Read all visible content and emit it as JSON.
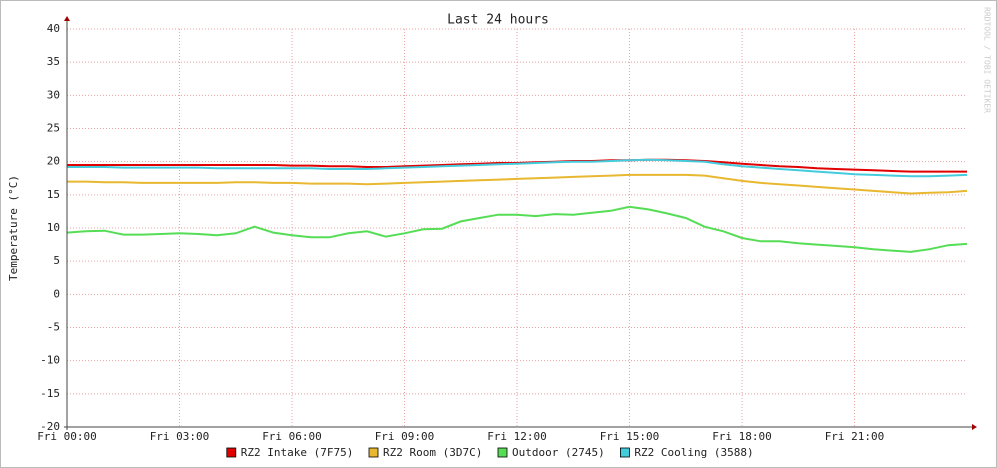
{
  "chart_data": {
    "type": "line",
    "title": "Last 24 hours",
    "y_label": "Temperature (°C)",
    "watermark": "RRDTOOL / TOBI OETIKER",
    "x": [
      0,
      0.5,
      1,
      1.5,
      2,
      2.5,
      3,
      3.5,
      4,
      4.5,
      5,
      5.5,
      6,
      6.5,
      7,
      7.5,
      8,
      8.5,
      9,
      9.5,
      10,
      10.5,
      11,
      11.5,
      12,
      12.5,
      13,
      13.5,
      14,
      14.5,
      15,
      15.5,
      16,
      16.5,
      17,
      17.5,
      18,
      18.5,
      19,
      19.5,
      20,
      20.5,
      21,
      21.5,
      22,
      22.5,
      23,
      23.5,
      24
    ],
    "xlim": [
      0,
      24
    ],
    "xticks": [
      {
        "value": 0,
        "label": "Fri 00:00"
      },
      {
        "value": 3,
        "label": "Fri 03:00"
      },
      {
        "value": 6,
        "label": "Fri 06:00"
      },
      {
        "value": 9,
        "label": "Fri 09:00"
      },
      {
        "value": 12,
        "label": "Fri 12:00"
      },
      {
        "value": 15,
        "label": "Fri 15:00"
      },
      {
        "value": 18,
        "label": "Fri 18:00"
      },
      {
        "value": 21,
        "label": "Fri 21:00"
      }
    ],
    "ylim": [
      -20,
      40
    ],
    "yticks": [
      -20,
      -15,
      -10,
      -5,
      0,
      5,
      10,
      15,
      20,
      25,
      30,
      35,
      40
    ],
    "grid": true,
    "series": [
      {
        "name": "RZ2 Intake (7F75)",
        "color": "#e00000",
        "values": [
          19.5,
          19.5,
          19.5,
          19.5,
          19.5,
          19.5,
          19.5,
          19.5,
          19.5,
          19.5,
          19.5,
          19.5,
          19.4,
          19.4,
          19.3,
          19.3,
          19.2,
          19.2,
          19.3,
          19.4,
          19.5,
          19.6,
          19.7,
          19.8,
          19.8,
          19.9,
          20.0,
          20.1,
          20.1,
          20.2,
          20.2,
          20.3,
          20.3,
          20.2,
          20.1,
          19.9,
          19.7,
          19.5,
          19.3,
          19.2,
          19.0,
          18.9,
          18.8,
          18.7,
          18.6,
          18.5,
          18.5,
          18.5,
          18.5
        ]
      },
      {
        "name": "RZ2 Room (3D7C)",
        "color": "#e8b830",
        "values": [
          17.0,
          17.0,
          16.9,
          16.9,
          16.8,
          16.8,
          16.8,
          16.8,
          16.8,
          16.9,
          16.9,
          16.8,
          16.8,
          16.7,
          16.7,
          16.7,
          16.6,
          16.7,
          16.8,
          16.9,
          17.0,
          17.1,
          17.2,
          17.3,
          17.4,
          17.5,
          17.6,
          17.7,
          17.8,
          17.9,
          18.0,
          18.0,
          18.0,
          18.0,
          17.9,
          17.5,
          17.1,
          16.8,
          16.6,
          16.4,
          16.2,
          16.0,
          15.8,
          15.6,
          15.4,
          15.2,
          15.3,
          15.4,
          15.6
        ]
      },
      {
        "name": "Outdoor (2745)",
        "color": "#55dd55",
        "values": [
          9.3,
          9.5,
          9.6,
          9.0,
          9.0,
          9.1,
          9.2,
          9.1,
          8.9,
          9.2,
          10.2,
          9.3,
          8.9,
          8.6,
          8.6,
          9.2,
          9.5,
          8.7,
          9.2,
          9.8,
          9.9,
          11.0,
          11.5,
          12.0,
          12.0,
          11.8,
          12.1,
          12.0,
          12.3,
          12.6,
          13.2,
          12.8,
          12.2,
          11.5,
          10.2,
          9.5,
          8.5,
          8.0,
          8.0,
          7.7,
          7.5,
          7.3,
          7.1,
          6.8,
          6.6,
          6.4,
          6.8,
          7.4,
          7.6
        ]
      },
      {
        "name": "RZ2 Cooling (3588)",
        "color": "#44ccdd",
        "values": [
          19.2,
          19.2,
          19.2,
          19.1,
          19.1,
          19.1,
          19.1,
          19.1,
          19.0,
          19.0,
          19.0,
          19.0,
          19.0,
          19.0,
          18.9,
          18.9,
          18.9,
          19.0,
          19.1,
          19.2,
          19.3,
          19.4,
          19.5,
          19.6,
          19.7,
          19.8,
          19.9,
          20.0,
          20.0,
          20.1,
          20.2,
          20.3,
          20.2,
          20.1,
          20.0,
          19.6,
          19.3,
          19.1,
          18.9,
          18.7,
          18.5,
          18.3,
          18.1,
          18.0,
          17.9,
          17.8,
          17.8,
          17.9,
          18.0
        ]
      }
    ]
  }
}
